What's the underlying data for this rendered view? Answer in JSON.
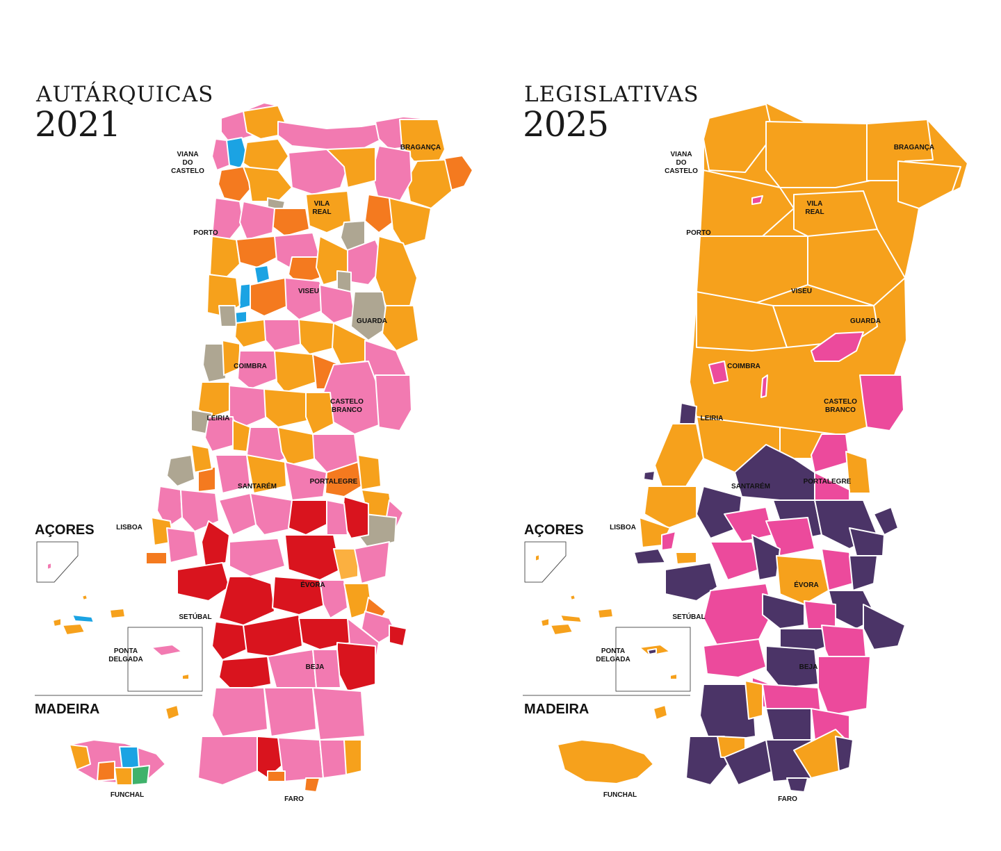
{
  "panels": [
    {
      "title_line1": "AUTÁRQUICAS",
      "title_line2": "2021",
      "colors": {
        "pink": "#f27ab1",
        "orange": "#f6a11c",
        "darkorange": "#f47a1f",
        "red": "#d9141e",
        "gray": "#aea692",
        "blue": "#1ba3e3",
        "green": "#3fb26b",
        "ltorange": "#fbb040"
      }
    },
    {
      "title_line1": "LEGISLATIVAS",
      "title_line2": "2025",
      "colors": {
        "orange": "#f6a11c",
        "pink": "#ec4a9c",
        "purple": "#4b3467"
      }
    }
  ],
  "labels": {
    "viana": [
      "VIANA",
      "DO",
      "CASTELO"
    ],
    "braganca": "BRAGANÇA",
    "vila_real": [
      "VILA",
      "REAL"
    ],
    "porto": "PORTO",
    "viseu": "VISEU",
    "guarda": "GUARDA",
    "coimbra": "COIMBRA",
    "castelo_branco": [
      "CASTELO",
      "BRANCO"
    ],
    "leiria": "LEIRIA",
    "santarem": "SANTARÉM",
    "portalegre": "PORTALEGRE",
    "lisboa": "LISBOA",
    "evora": "ÉVORA",
    "setubal": "SETÚBAL",
    "beja": "BEJA",
    "faro": "FARO",
    "ponta_delgada": [
      "PONTA",
      "DELGADA"
    ],
    "funchal": "FUNCHAL",
    "acores": "AÇORES",
    "madeira": "MADEIRA"
  }
}
